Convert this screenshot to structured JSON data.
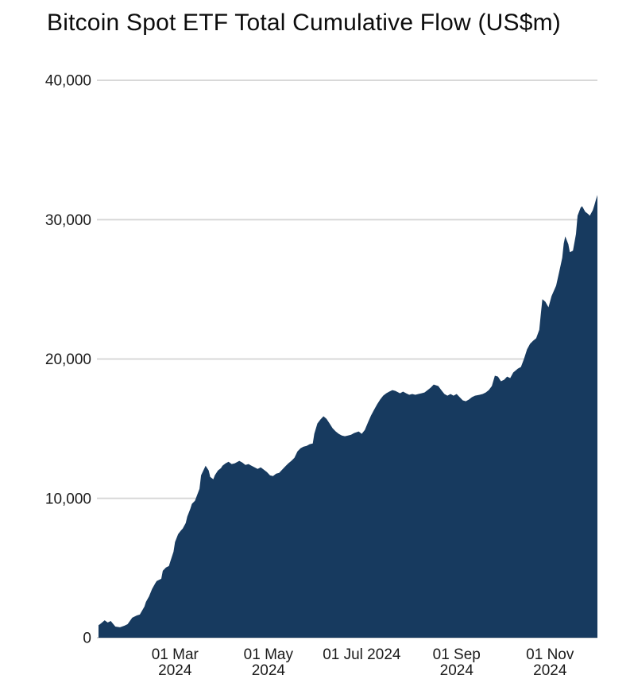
{
  "chart_data": {
    "type": "area",
    "title": "Bitcoin Spot ETF Total Cumulative Flow (US$m)",
    "xlabel": "",
    "ylabel": "",
    "x_unit": "days since first point (11 Jan 2024)",
    "x_range": [
      0,
      326
    ],
    "y_range": [
      0,
      40000
    ],
    "grid": true,
    "legend": false,
    "fill_color": "#173A5F",
    "grid_color": "#D8D8D8",
    "text_color": "#1A1A1A",
    "background_color": "#FFFFFF",
    "y_ticks": [
      {
        "value": 0,
        "label": "0"
      },
      {
        "value": 10000,
        "label": "10,000"
      },
      {
        "value": 20000,
        "label": "20,000"
      },
      {
        "value": 30000,
        "label": "30,000"
      },
      {
        "value": 40000,
        "label": "40,000"
      }
    ],
    "x_ticks": [
      {
        "day": 50,
        "lines": [
          "01 Mar",
          "2024"
        ]
      },
      {
        "day": 111,
        "lines": [
          "01 May",
          "2024"
        ]
      },
      {
        "day": 172,
        "lines": [
          "01 Jul 2024"
        ]
      },
      {
        "day": 234,
        "lines": [
          "01 Sep",
          "2024"
        ]
      },
      {
        "day": 295,
        "lines": [
          "01 Nov",
          "2024"
        ]
      }
    ],
    "series": [
      {
        "name": "Total Cumulative Flow (US$m)",
        "points": [
          [
            0,
            900
          ],
          [
            1,
            970
          ],
          [
            4,
            1250
          ],
          [
            6,
            1090
          ],
          [
            8,
            1200
          ],
          [
            11,
            800
          ],
          [
            14,
            745
          ],
          [
            17,
            860
          ],
          [
            19,
            970
          ],
          [
            22,
            1430
          ],
          [
            25,
            1600
          ],
          [
            27,
            1660
          ],
          [
            30,
            2230
          ],
          [
            31,
            2570
          ],
          [
            33,
            2970
          ],
          [
            35,
            3490
          ],
          [
            37,
            3890
          ],
          [
            38,
            4060
          ],
          [
            41,
            4230
          ],
          [
            42,
            4800
          ],
          [
            44,
            5030
          ],
          [
            46,
            5140
          ],
          [
            47,
            5490
          ],
          [
            49,
            6170
          ],
          [
            50,
            6860
          ],
          [
            52,
            7430
          ],
          [
            54,
            7710
          ],
          [
            55,
            7830
          ],
          [
            57,
            8230
          ],
          [
            58,
            8690
          ],
          [
            60,
            9260
          ],
          [
            61,
            9600
          ],
          [
            63,
            9830
          ],
          [
            64,
            10110
          ],
          [
            66,
            10690
          ],
          [
            67,
            11660
          ],
          [
            69,
            12110
          ],
          [
            70,
            12340
          ],
          [
            72,
            12000
          ],
          [
            73,
            11540
          ],
          [
            75,
            11370
          ],
          [
            76,
            11660
          ],
          [
            78,
            12000
          ],
          [
            80,
            12170
          ],
          [
            81,
            12340
          ],
          [
            83,
            12510
          ],
          [
            85,
            12630
          ],
          [
            87,
            12460
          ],
          [
            89,
            12510
          ],
          [
            92,
            12690
          ],
          [
            94,
            12570
          ],
          [
            96,
            12400
          ],
          [
            98,
            12460
          ],
          [
            100,
            12340
          ],
          [
            102,
            12230
          ],
          [
            104,
            12110
          ],
          [
            106,
            12230
          ],
          [
            108,
            12060
          ],
          [
            110,
            11890
          ],
          [
            112,
            11660
          ],
          [
            114,
            11600
          ],
          [
            116,
            11770
          ],
          [
            118,
            11830
          ],
          [
            120,
            12060
          ],
          [
            122,
            12290
          ],
          [
            124,
            12510
          ],
          [
            126,
            12690
          ],
          [
            128,
            12910
          ],
          [
            130,
            13370
          ],
          [
            132,
            13600
          ],
          [
            134,
            13710
          ],
          [
            136,
            13770
          ],
          [
            138,
            13890
          ],
          [
            140,
            13940
          ],
          [
            141,
            14630
          ],
          [
            143,
            15370
          ],
          [
            145,
            15660
          ],
          [
            147,
            15890
          ],
          [
            149,
            15710
          ],
          [
            151,
            15370
          ],
          [
            153,
            15030
          ],
          [
            155,
            14800
          ],
          [
            157,
            14630
          ],
          [
            159,
            14510
          ],
          [
            161,
            14460
          ],
          [
            163,
            14510
          ],
          [
            165,
            14570
          ],
          [
            167,
            14690
          ],
          [
            170,
            14800
          ],
          [
            172,
            14630
          ],
          [
            174,
            14910
          ],
          [
            176,
            15430
          ],
          [
            178,
            15940
          ],
          [
            180,
            16340
          ],
          [
            182,
            16740
          ],
          [
            184,
            17090
          ],
          [
            186,
            17370
          ],
          [
            188,
            17540
          ],
          [
            190,
            17660
          ],
          [
            192,
            17770
          ],
          [
            194,
            17710
          ],
          [
            197,
            17540
          ],
          [
            199,
            17660
          ],
          [
            201,
            17540
          ],
          [
            203,
            17430
          ],
          [
            205,
            17490
          ],
          [
            207,
            17430
          ],
          [
            209,
            17490
          ],
          [
            211,
            17540
          ],
          [
            213,
            17600
          ],
          [
            215,
            17770
          ],
          [
            217,
            17940
          ],
          [
            219,
            18170
          ],
          [
            222,
            18060
          ],
          [
            224,
            17770
          ],
          [
            226,
            17490
          ],
          [
            228,
            17370
          ],
          [
            230,
            17490
          ],
          [
            232,
            17370
          ],
          [
            234,
            17490
          ],
          [
            236,
            17260
          ],
          [
            238,
            17030
          ],
          [
            240,
            16970
          ],
          [
            242,
            17090
          ],
          [
            244,
            17260
          ],
          [
            246,
            17370
          ],
          [
            249,
            17430
          ],
          [
            251,
            17490
          ],
          [
            253,
            17600
          ],
          [
            255,
            17770
          ],
          [
            257,
            18060
          ],
          [
            259,
            18800
          ],
          [
            261,
            18740
          ],
          [
            263,
            18400
          ],
          [
            265,
            18510
          ],
          [
            267,
            18740
          ],
          [
            269,
            18630
          ],
          [
            271,
            19030
          ],
          [
            274,
            19310
          ],
          [
            276,
            19430
          ],
          [
            278,
            20000
          ],
          [
            280,
            20690
          ],
          [
            282,
            21090
          ],
          [
            284,
            21310
          ],
          [
            286,
            21490
          ],
          [
            288,
            22100
          ],
          [
            289,
            23200
          ],
          [
            290,
            24290
          ],
          [
            292,
            24110
          ],
          [
            294,
            23710
          ],
          [
            296,
            24510
          ],
          [
            299,
            25260
          ],
          [
            301,
            26230
          ],
          [
            303,
            27260
          ],
          [
            304,
            28290
          ],
          [
            305,
            28800
          ],
          [
            307,
            28230
          ],
          [
            308,
            27660
          ],
          [
            310,
            27770
          ],
          [
            312,
            28970
          ],
          [
            313,
            30290
          ],
          [
            315,
            30860
          ],
          [
            316,
            30970
          ],
          [
            318,
            30570
          ],
          [
            320,
            30400
          ],
          [
            321,
            30290
          ],
          [
            323,
            30690
          ],
          [
            324,
            31030
          ],
          [
            325,
            31430
          ],
          [
            326,
            31770
          ]
        ]
      }
    ]
  }
}
